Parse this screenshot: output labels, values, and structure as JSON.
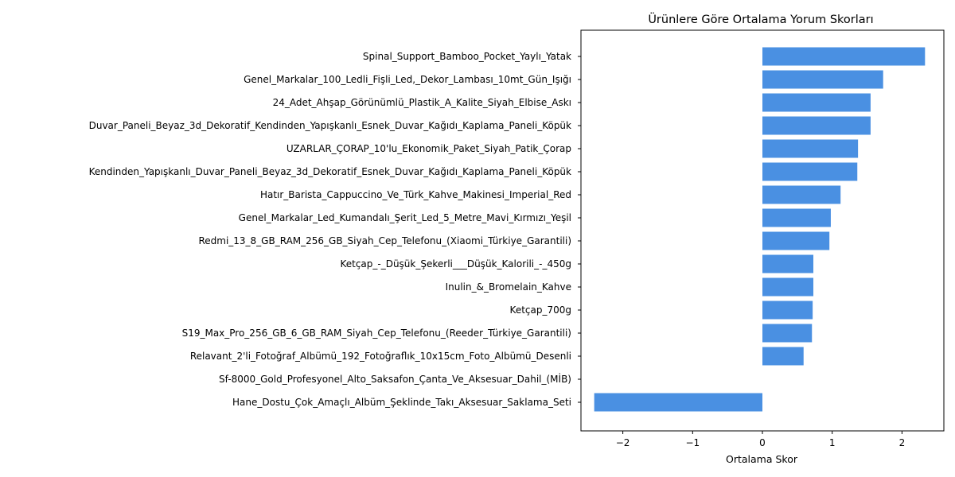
{
  "chart_data": {
    "type": "bar",
    "orientation": "horizontal",
    "title": "Ürünlere Göre Ortalama Yorum Skorları",
    "xlabel": "Ortalama Skor",
    "ylabel": "",
    "xlim": [
      -2.6,
      2.6
    ],
    "xticks": [
      -2,
      -1,
      0,
      1,
      2
    ],
    "xtick_labels": [
      "−2",
      "−1",
      "0",
      "1",
      "2"
    ],
    "bar_color": "#4a90e2",
    "grid": false,
    "categories": [
      "Spinal_Support_Bamboo_Pocket_Yaylı_Yatak",
      "Genel_Markalar_100_Ledli_Fişli_Led,_Dekor_Lambası_10mt_Gün_Işığı",
      "24_Adet_Ahşap_Görünümlü_Plastik_A_Kalite_Siyah_Elbise_Askı",
      "Duvar_Paneli_Beyaz_3d_Dekoratif_Kendinden_Yapışkanlı_Esnek_Duvar_Kağıdı_Kaplama_Paneli_Köpük",
      "UZARLAR_ÇORAP_10'lu_Ekonomik_Paket_Siyah_Patik_Çorap",
      "Kendinden_Yapışkanlı_Duvar_Paneli_Beyaz_3d_Dekoratif_Esnek_Duvar_Kağıdı_Kaplama_Paneli_Köpük",
      "Hatır_Barista_Cappuccino_Ve_Türk_Kahve_Makinesi_Imperial_Red",
      "Genel_Markalar_Led_Kumandalı_Şerit_Led_5_Metre_Mavi_Kırmızı_Yeşil",
      "Redmi_13_8_GB_RAM_256_GB_Siyah_Cep_Telefonu_(Xiaomi_Türkiye_Garantili)",
      "Ketçap_-_Düşük_Şekerli___Düşük_Kalorili_-_450g",
      "Inulin_&_Bromelain_Kahve",
      "Ketçap_700g",
      "S19_Max_Pro_256_GB_6_GB_RAM_Siyah_Cep_Telefonu_(Reeder_Türkiye_Garantili)",
      "Relavant_2'li_Fotoğraf_Albümü_192_Fotoğraflık_10x15cm_Foto_Albümü_Desenli",
      "Sf-8000_Gold_Profesyonel_Alto_Saksafon_Çanta_Ve_Aksesuar_Dahil_(MİB)",
      "Hane_Dostu_Çok_Amaçlı_Albüm_Şeklinde_Takı_Aksesuar_Saklama_Seti"
    ],
    "values": [
      2.33,
      1.73,
      1.55,
      1.55,
      1.37,
      1.36,
      1.12,
      0.98,
      0.96,
      0.73,
      0.73,
      0.72,
      0.71,
      0.59,
      0.0,
      -2.41
    ]
  }
}
